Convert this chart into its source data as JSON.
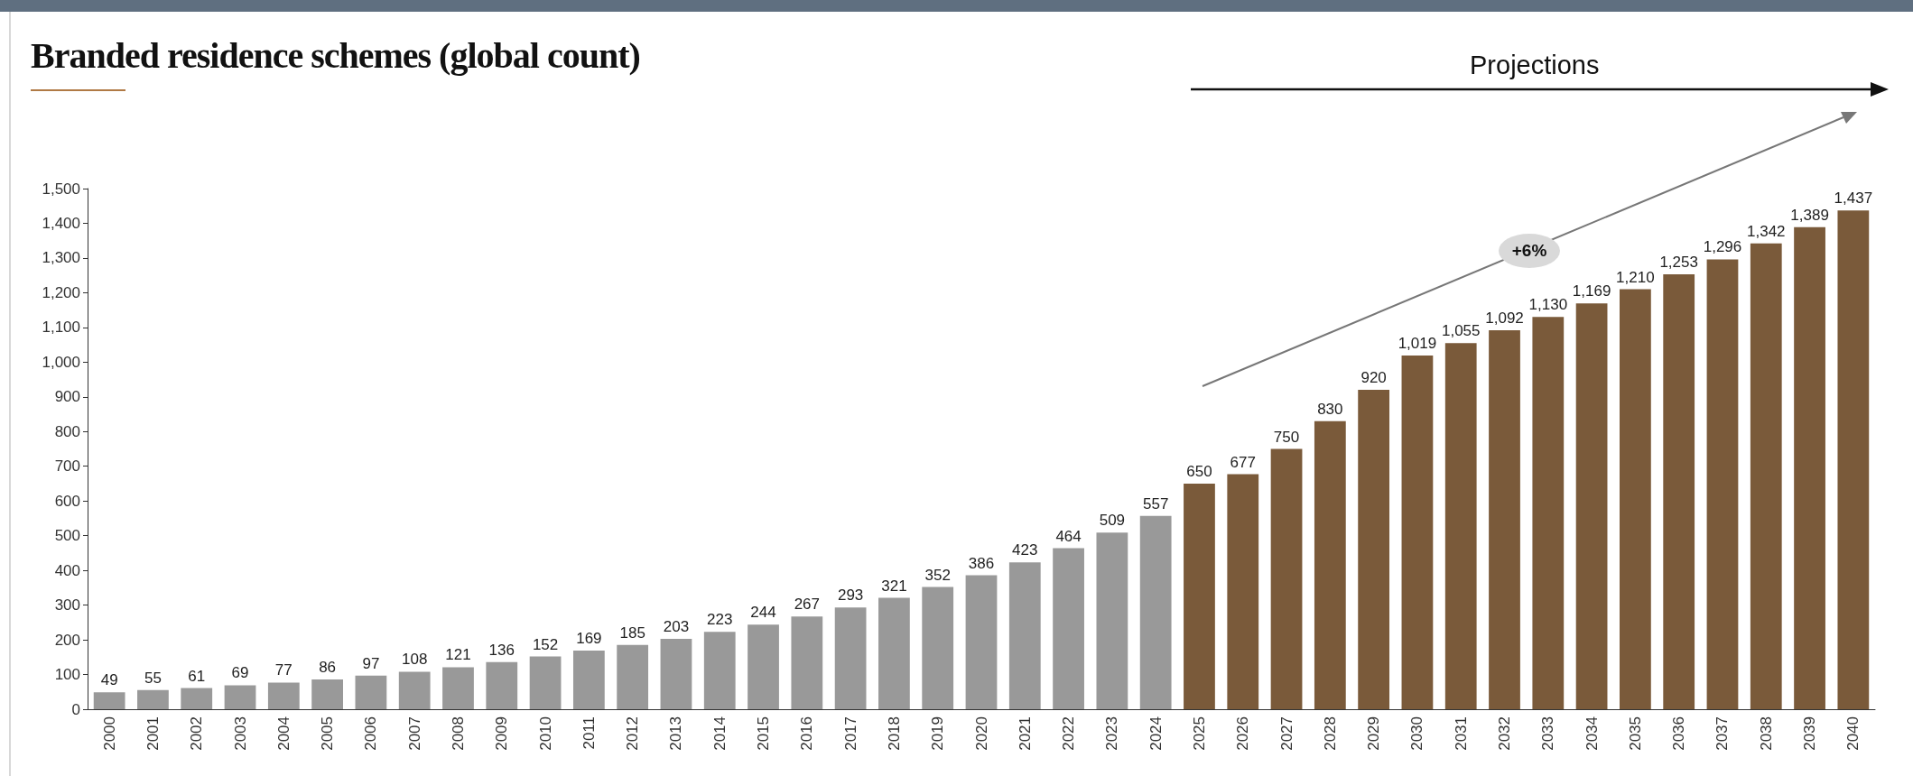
{
  "chart_data": {
    "type": "bar",
    "title": "Branded residence schemes (global count)",
    "categories": [
      "2000",
      "2001",
      "2002",
      "2003",
      "2004",
      "2005",
      "2006",
      "2007",
      "2008",
      "2009",
      "2010",
      "2011",
      "2012",
      "2013",
      "2014",
      "2015",
      "2016",
      "2017",
      "2018",
      "2019",
      "2020",
      "2021",
      "2022",
      "2023",
      "2024",
      "2025",
      "2026",
      "2027",
      "2028",
      "2029",
      "2030",
      "2031",
      "2032",
      "2033",
      "2034",
      "2035",
      "2036",
      "2037",
      "2038",
      "2039",
      "2040"
    ],
    "values": [
      49,
      55,
      61,
      69,
      77,
      86,
      97,
      108,
      121,
      136,
      152,
      169,
      185,
      203,
      223,
      244,
      267,
      293,
      321,
      352,
      386,
      423,
      464,
      509,
      557,
      650,
      677,
      750,
      830,
      920,
      1019,
      1055,
      1092,
      1130,
      1169,
      1210,
      1253,
      1296,
      1342,
      1389,
      1437
    ],
    "colors": [
      "#999999",
      "#999999",
      "#999999",
      "#999999",
      "#999999",
      "#999999",
      "#999999",
      "#999999",
      "#999999",
      "#999999",
      "#999999",
      "#999999",
      "#999999",
      "#999999",
      "#999999",
      "#999999",
      "#999999",
      "#999999",
      "#999999",
      "#999999",
      "#999999",
      "#999999",
      "#999999",
      "#999999",
      "#999999",
      "#7a5a3a",
      "#7a5a3a",
      "#7a5a3a",
      "#7a5a3a",
      "#7a5a3a",
      "#7a5a3a",
      "#7a5a3a",
      "#7a5a3a",
      "#7a5a3a",
      "#7a5a3a",
      "#7a5a3a",
      "#7a5a3a",
      "#7a5a3a",
      "#7a5a3a",
      "#7a5a3a",
      "#7a5a3a"
    ],
    "ylim": [
      0,
      1500
    ],
    "yticks": [
      0,
      100,
      200,
      300,
      400,
      500,
      600,
      700,
      800,
      900,
      {
        "value": 1000,
        "label": "1,000"
      },
      {
        "value": 1100,
        "label": "1,100"
      },
      {
        "value": 1200,
        "label": "1,200"
      },
      {
        "value": 1300,
        "label": "1,300"
      },
      {
        "value": 1400,
        "label": "1,400"
      },
      {
        "value": 1500,
        "label": "1,500"
      }
    ],
    "value_labels": [
      "49",
      "55",
      "61",
      "69",
      "77",
      "86",
      "97",
      "108",
      "121",
      "136",
      "152",
      "169",
      "185",
      "203",
      "223",
      "244",
      "267",
      "293",
      "321",
      "352",
      "386",
      "423",
      "464",
      "509",
      "557",
      "650",
      "677",
      "750",
      "830",
      "920",
      "1,019",
      "1,055",
      "1,092",
      "1,130",
      "1,169",
      "1,210",
      "1,253",
      "1,296",
      "1,342",
      "1,389",
      "1,437"
    ],
    "annotations": [
      "Projections",
      "+6%"
    ]
  }
}
